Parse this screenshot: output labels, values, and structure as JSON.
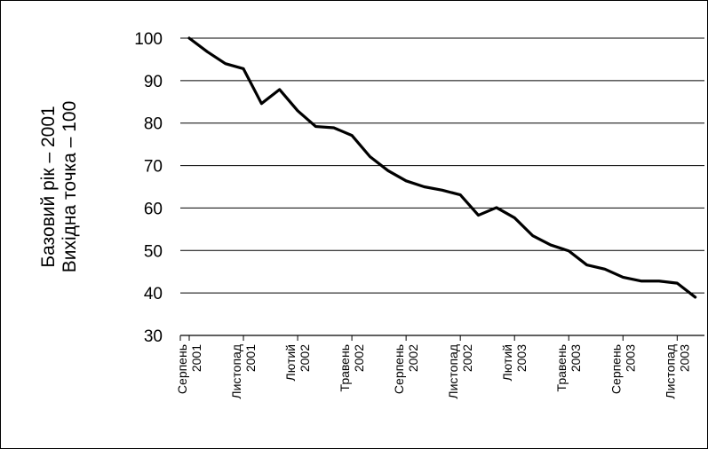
{
  "chart_data": {
    "type": "line",
    "ylabel_lines": [
      "Базовий рік – 2001",
      "Вихідна точка – 100"
    ],
    "ylim": [
      30,
      100
    ],
    "yticks": [
      30,
      40,
      50,
      60,
      70,
      80,
      90,
      100
    ],
    "grid": true,
    "legend": "none",
    "x_tick_labels": [
      {
        "line1": "Серпень",
        "line2": "2001"
      },
      {
        "line1": "Листопад",
        "line2": "2001"
      },
      {
        "line1": "Лютий",
        "line2": "2002"
      },
      {
        "line1": "Травень",
        "line2": "2002"
      },
      {
        "line1": "Серпень",
        "line2": "2002"
      },
      {
        "line1": "Листопад",
        "line2": "2002"
      },
      {
        "line1": "Лютий",
        "line2": "2003"
      },
      {
        "line1": "Травень",
        "line2": "2003"
      },
      {
        "line1": "Серпень",
        "line2": "2003"
      },
      {
        "line1": "Листопад",
        "line2": "2003"
      }
    ],
    "series": [
      {
        "values": [
          100,
          96.8,
          94,
          92.8,
          84.6,
          87.9,
          82.9,
          79.2,
          78.9,
          77.1,
          72.1,
          68.8,
          66.4,
          65,
          64.2,
          63.1,
          58.3,
          60.1,
          57.7,
          53.5,
          51.3,
          49.9,
          46.6,
          45.6,
          43.7,
          42.8,
          42.8,
          42.3,
          39
        ]
      }
    ],
    "line_color": "#000000"
  }
}
